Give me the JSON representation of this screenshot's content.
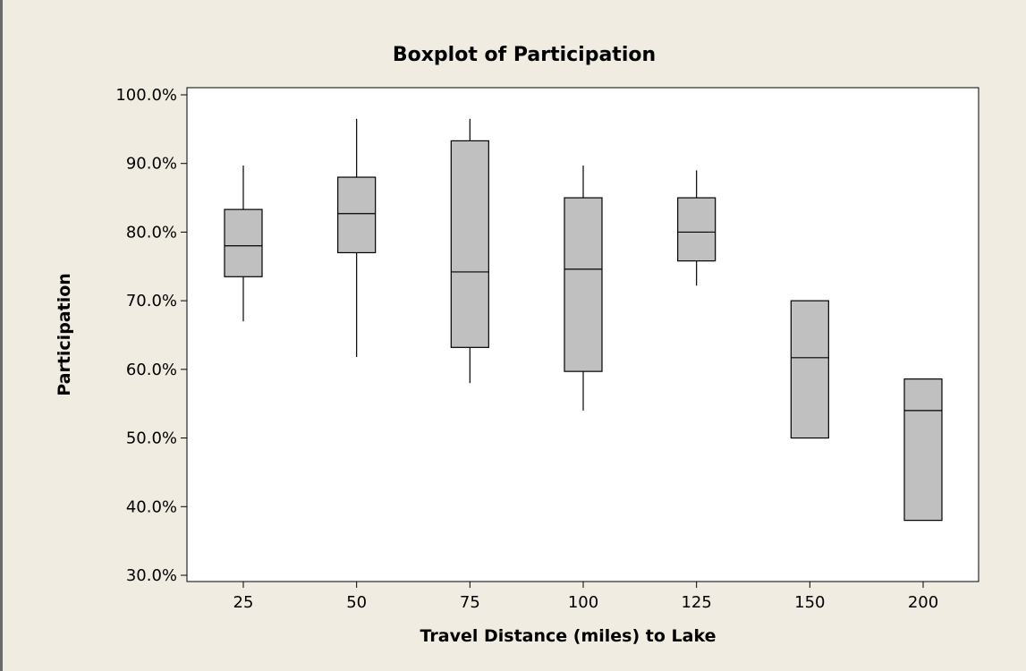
{
  "chart_data": {
    "type": "boxplot",
    "title": "Boxplot of Participation",
    "xlabel": "Travel Distance (miles) to Lake",
    "ylabel": "Participation",
    "ylim": [
      0.3,
      1.0
    ],
    "yticks": [
      "30.0%",
      "40.0%",
      "50.0%",
      "60.0%",
      "70.0%",
      "80.0%",
      "90.0%",
      "100.0%"
    ],
    "categories": [
      "25",
      "50",
      "75",
      "100",
      "125",
      "150",
      "200"
    ],
    "boxes": [
      {
        "category": "25",
        "min": 0.67,
        "q1": 0.735,
        "median": 0.78,
        "q3": 0.833,
        "max": 0.897
      },
      {
        "category": "50",
        "min": 0.618,
        "q1": 0.77,
        "median": 0.827,
        "q3": 0.88,
        "max": 0.965
      },
      {
        "category": "75",
        "min": 0.58,
        "q1": 0.632,
        "median": 0.742,
        "q3": 0.933,
        "max": 0.965
      },
      {
        "category": "100",
        "min": 0.54,
        "q1": 0.597,
        "median": 0.746,
        "q3": 0.85,
        "max": 0.897
      },
      {
        "category": "125",
        "min": 0.722,
        "q1": 0.758,
        "median": 0.8,
        "q3": 0.85,
        "max": 0.89
      },
      {
        "category": "150",
        "min": 0.5,
        "q1": 0.5,
        "median": 0.617,
        "q3": 0.7,
        "max": 0.7
      },
      {
        "category": "200",
        "min": 0.38,
        "q1": 0.38,
        "median": 0.54,
        "q3": 0.586,
        "max": 0.586
      }
    ],
    "box_fill": "#c0c0c0",
    "plot_background": "#ffffff",
    "figure_background": "#f0ece1",
    "grid": false,
    "legend": "none"
  }
}
